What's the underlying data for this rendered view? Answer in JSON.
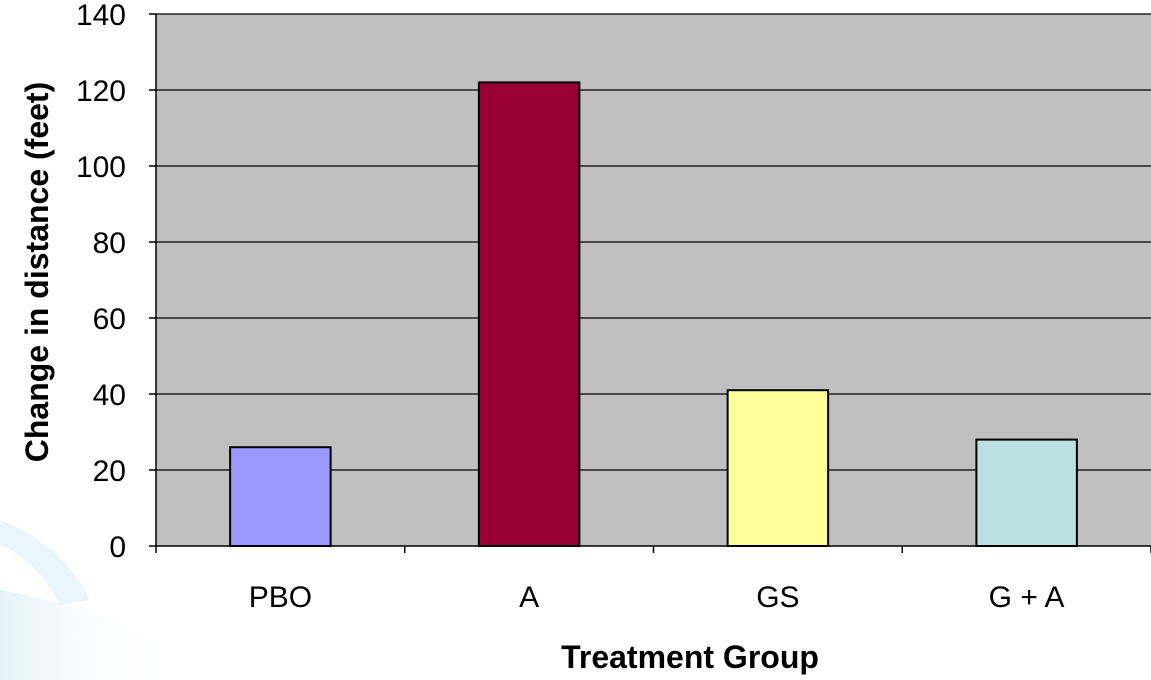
{
  "chart_data": {
    "type": "bar",
    "categories": [
      "PBO",
      "A",
      "GS",
      "G + A"
    ],
    "values": [
      26,
      122,
      41,
      28
    ],
    "bar_colors": [
      "#9999FF",
      "#990033",
      "#FFFF99",
      "#BBE0E3"
    ],
    "xlabel": "Treatment Group",
    "ylabel": "Change in distance (feet)",
    "ylim": [
      0,
      140
    ],
    "yticks": [
      0,
      20,
      40,
      60,
      80,
      100,
      120,
      140
    ],
    "ytick_labels": [
      "0",
      "20",
      "40",
      "60",
      "80",
      "100",
      "120",
      "140"
    ],
    "grid": true,
    "plot_background": "#C0C0C0",
    "gridline_color": "#000000",
    "legend": "none"
  }
}
